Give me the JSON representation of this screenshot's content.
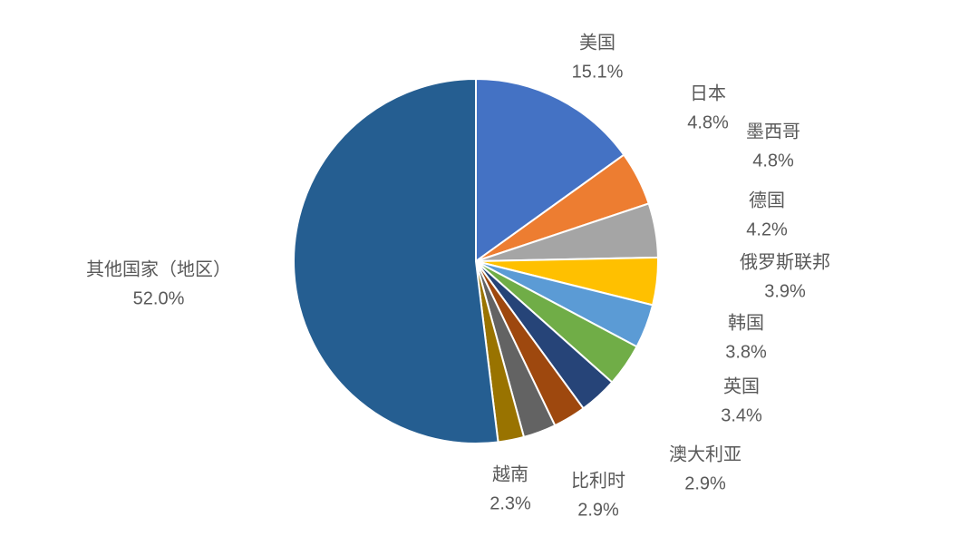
{
  "chart_data": {
    "type": "pie",
    "categories": [
      "美国",
      "日本",
      "墨西哥",
      "德国",
      "俄罗斯联邦",
      "韩国",
      "英国",
      "澳大利亚",
      "比利时",
      "越南",
      "其他国家（地区）"
    ],
    "values": [
      15.1,
      4.8,
      4.8,
      4.2,
      3.9,
      3.8,
      3.4,
      2.9,
      2.9,
      2.3,
      52.0
    ],
    "value_labels": [
      "15.1%",
      "4.8%",
      "4.8%",
      "4.2%",
      "3.9%",
      "3.8%",
      "3.4%",
      "2.9%",
      "2.9%",
      "2.3%",
      "52.0%"
    ],
    "colors": [
      "#4472c4",
      "#ed7d31",
      "#a5a5a5",
      "#ffc000",
      "#5b9bd5",
      "#70ad47",
      "#264478",
      "#9e480e",
      "#636363",
      "#997300",
      "#255e91"
    ]
  }
}
